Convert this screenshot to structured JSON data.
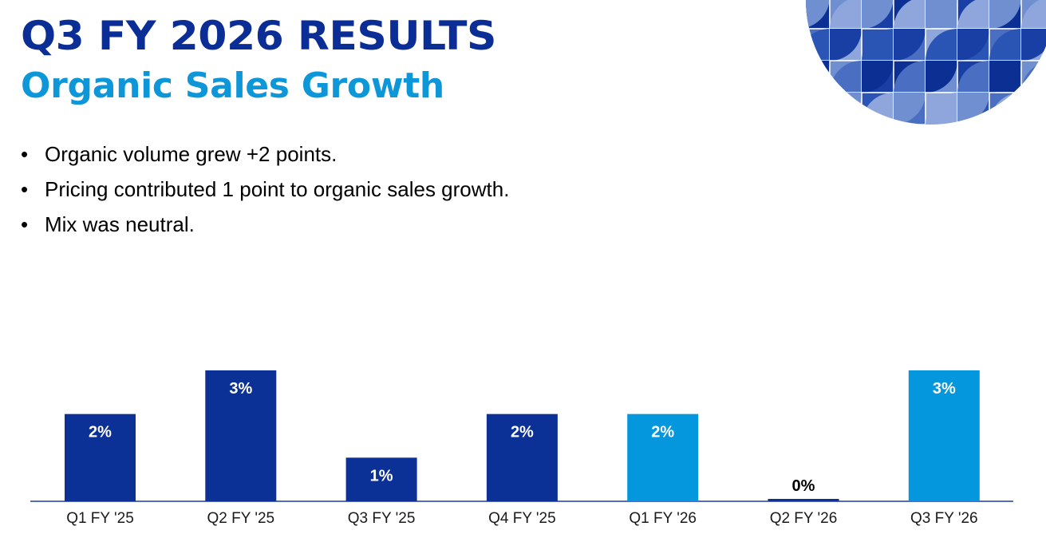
{
  "slide": {
    "title": "Q3 FY 2026 RESULTS",
    "subtitle": "Organic Sales Growth",
    "bullets": [
      "Organic volume grew +2 points.",
      "Pricing contributed 1 point to organic sales growth.",
      "Mix was neutral."
    ],
    "bullet_glyph": "•"
  },
  "colors": {
    "title": "#0a2d96",
    "subtitle": "#0d96d8",
    "bar_dark": "#0c3196",
    "bar_light": "#0497dd",
    "axis": "#1e3a9a",
    "label_outside": "#000000",
    "label_inside": "#ffffff"
  },
  "chart_data": {
    "type": "bar",
    "categories": [
      "Q1 FY '25",
      "Q2 FY '25",
      "Q3 FY '25",
      "Q4 FY '25",
      "Q1 FY '26",
      "Q2 FY '26",
      "Q3 FY '26"
    ],
    "values": [
      2,
      3,
      1,
      2,
      2,
      0,
      3
    ],
    "labels": [
      "2%",
      "3%",
      "1%",
      "2%",
      "2%",
      "0%",
      "3%"
    ],
    "bar_colors": [
      "#0c3196",
      "#0c3196",
      "#0c3196",
      "#0c3196",
      "#0497dd",
      "#0c3196",
      "#0497dd"
    ],
    "ylim": [
      0,
      3
    ],
    "unit": "%",
    "grid": false,
    "legend": "none"
  }
}
